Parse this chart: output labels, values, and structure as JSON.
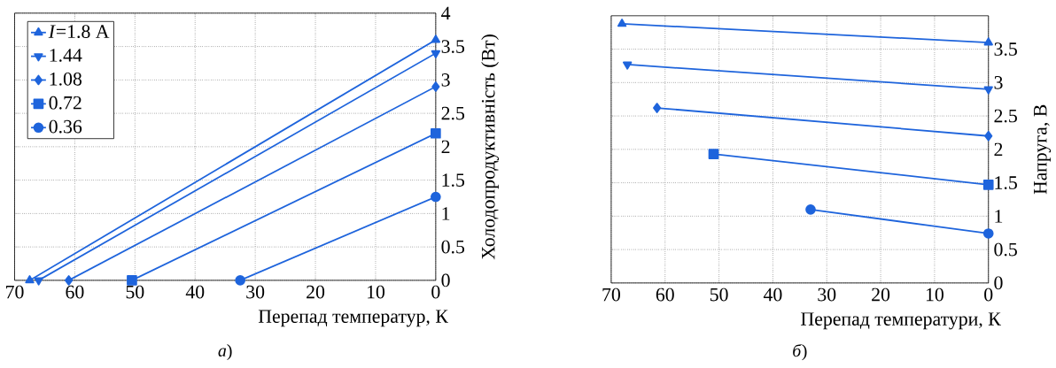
{
  "chart_data": [
    {
      "type": "line",
      "xlabel": "Перепад температур, К",
      "ylabel": "Холодопродуктивність (Вт)",
      "annotations": [
        "*а*)"
      ],
      "xlim": [
        70,
        0
      ],
      "xticks": [
        70,
        60,
        50,
        40,
        30,
        20,
        10,
        0
      ],
      "ylim": [
        0,
        4
      ],
      "yticks": [
        0,
        0.5,
        1,
        1.5,
        2,
        2.5,
        3,
        3.5,
        4
      ],
      "grid": true,
      "legend": "top left",
      "line_style": "solid",
      "series": [
        {
          "name": "*I*=1.8 А",
          "color": "#1e64dc",
          "marker": "triangle",
          "x": [
            67.5,
            0
          ],
          "values": [
            0,
            3.6
          ]
        },
        {
          "name": "1.44",
          "color": "#1e64dc",
          "marker": "triangle-down",
          "x": [
            66,
            0
          ],
          "values": [
            0,
            3.4
          ]
        },
        {
          "name": "1.08",
          "color": "#1e64dc",
          "marker": "diamond",
          "x": [
            61,
            0
          ],
          "values": [
            0,
            2.9
          ]
        },
        {
          "name": "0.72",
          "color": "#1e64dc",
          "marker": "square",
          "x": [
            50.5,
            0
          ],
          "values": [
            0,
            2.2
          ]
        },
        {
          "name": "0.36",
          "color": "#1e64dc",
          "marker": "circle",
          "x": [
            32.5,
            0
          ],
          "values": [
            0,
            1.25
          ]
        }
      ]
    },
    {
      "type": "line",
      "xlabel": "Перепад температури, К",
      "ylabel": "Напруга, В",
      "annotations": [
        "*б*)"
      ],
      "xlim": [
        70,
        0
      ],
      "xticks": [
        70,
        60,
        50,
        40,
        30,
        20,
        10,
        0
      ],
      "ylim": [
        0,
        4
      ],
      "yticks": [
        0,
        0.5,
        1,
        1.5,
        2,
        2.5,
        3,
        3.5
      ],
      "grid": true,
      "line_style": "solid",
      "series": [
        {
          "color": "#1e64dc",
          "marker": "triangle",
          "x": [
            68,
            0
          ],
          "values": [
            3.88,
            3.6
          ]
        },
        {
          "color": "#1e64dc",
          "marker": "triangle-down",
          "x": [
            67,
            0
          ],
          "values": [
            3.27,
            2.9
          ]
        },
        {
          "color": "#1e64dc",
          "marker": "diamond",
          "x": [
            61.5,
            0
          ],
          "values": [
            2.62,
            2.2
          ]
        },
        {
          "color": "#1e64dc",
          "marker": "square",
          "x": [
            51,
            0
          ],
          "values": [
            1.93,
            1.47
          ]
        },
        {
          "color": "#1e64dc",
          "marker": "circle",
          "x": [
            33,
            0
          ],
          "values": [
            1.1,
            0.74
          ]
        }
      ]
    }
  ]
}
